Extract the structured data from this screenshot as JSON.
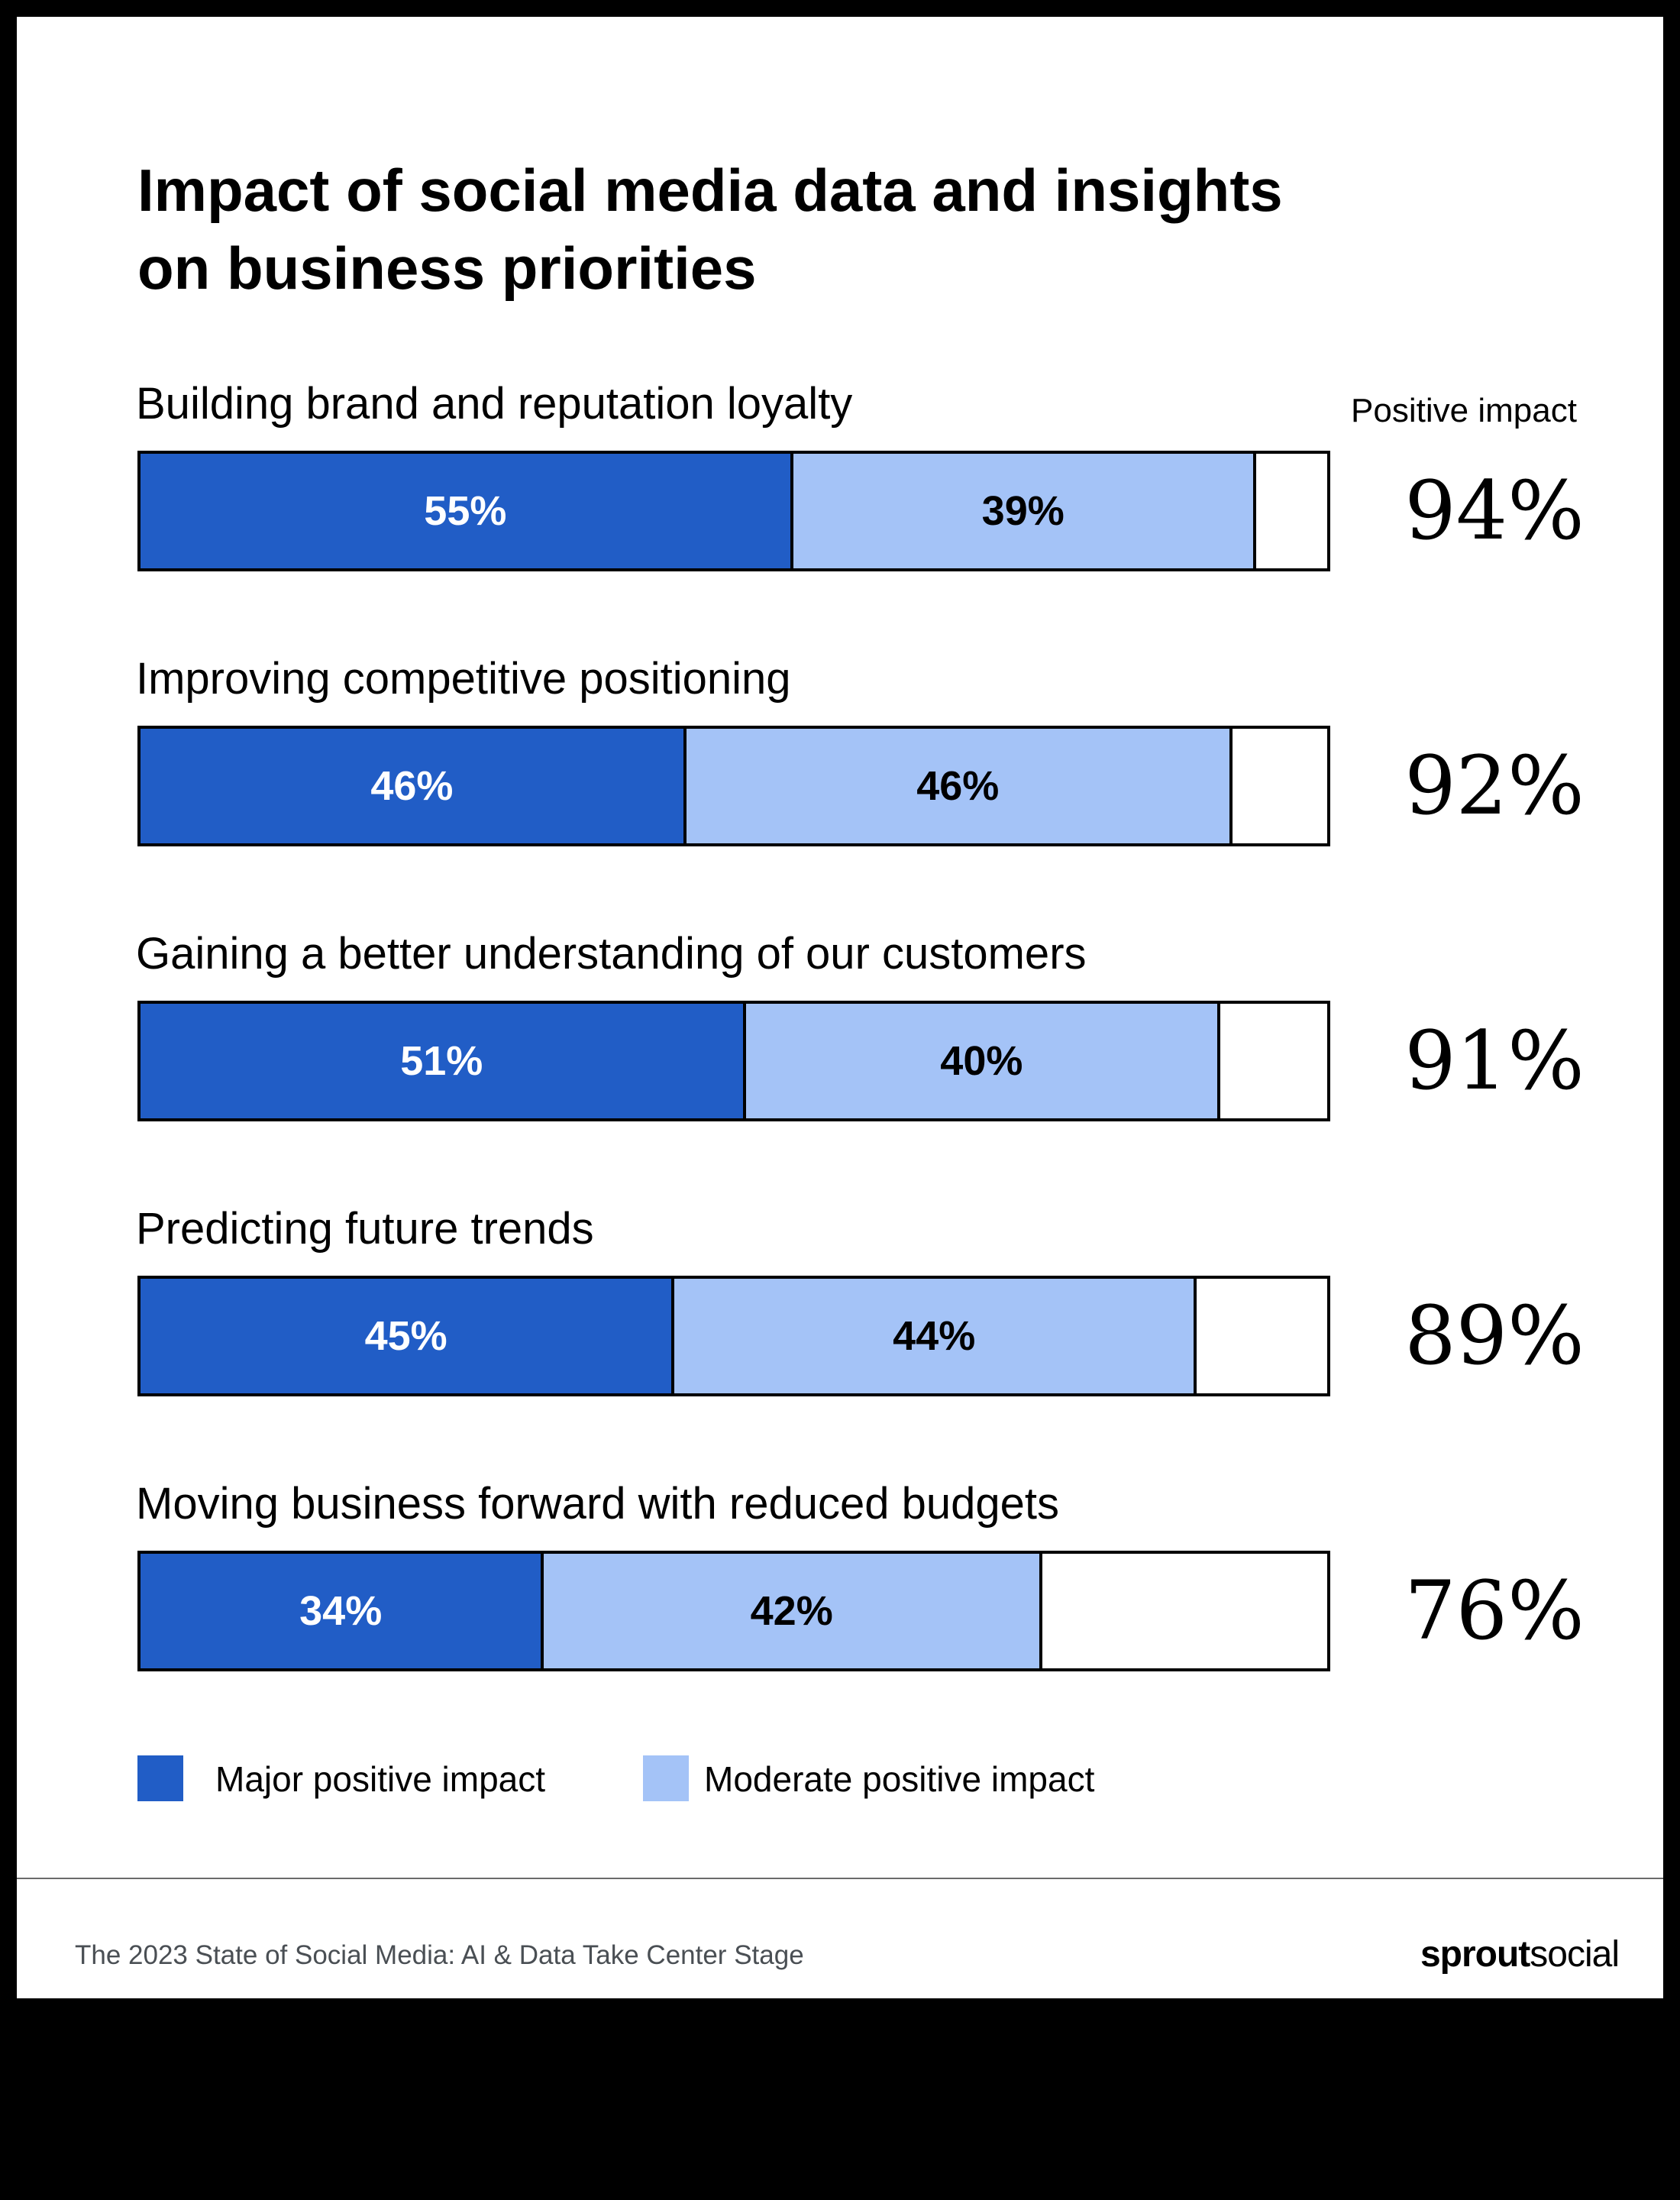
{
  "title_lines": [
    "Impact of social media data and insights",
    "on business priorities"
  ],
  "positive_impact_header": "Positive impact",
  "colors": {
    "major": "#215DC6",
    "moderate": "#A4C3F7",
    "remainder": "#FFFFFF",
    "major_text": "#FFFFFF",
    "moderate_text": "#000000"
  },
  "chart_data": {
    "type": "bar",
    "orientation": "horizontal",
    "stacked": true,
    "title": "Impact of social media data and insights on business priorities",
    "categories": [
      "Building brand and reputation loyalty",
      "Improving competitive positioning",
      "Gaining a better understanding of our customers",
      "Predicting future trends",
      "Moving business forward with reduced budgets"
    ],
    "series": [
      {
        "name": "Major positive impact",
        "values": [
          55,
          46,
          51,
          45,
          34
        ],
        "labels": [
          "55%",
          "46%",
          "51%",
          "45%",
          "34%"
        ]
      },
      {
        "name": "Moderate positive impact",
        "values": [
          39,
          46,
          40,
          44,
          42
        ],
        "labels": [
          "39%",
          "46%",
          "40%",
          "44%",
          "42%"
        ]
      }
    ],
    "totals": [
      "94%",
      "92%",
      "91%",
      "89%",
      "76%"
    ],
    "xlim": [
      0,
      100
    ],
    "legend": [
      "Major positive impact",
      "Moderate positive impact"
    ],
    "legend_position": "bottom-left"
  },
  "footer": {
    "source": "The 2023 State of Social Media: AI & Data Take Center Stage",
    "logo_bold": "sprout",
    "logo_regular": "social"
  }
}
